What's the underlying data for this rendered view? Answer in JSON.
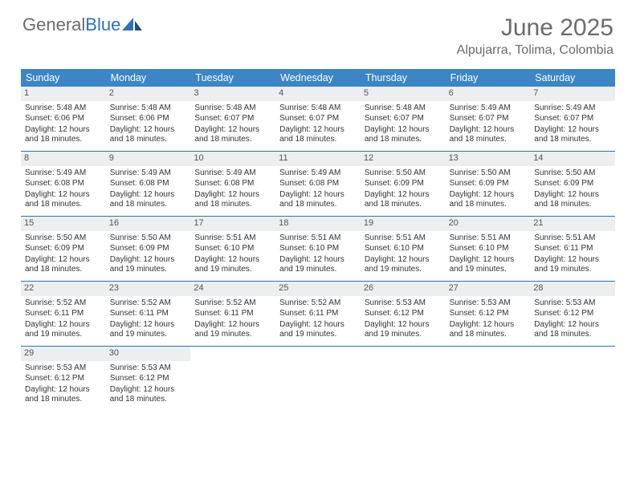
{
  "logo": {
    "text1": "General",
    "text2": "Blue"
  },
  "title": "June 2025",
  "location": "Alpujarra, Tolima, Colombia",
  "colors": {
    "header_bg": "#3b86c7",
    "header_text": "#ffffff",
    "rule": "#2f71b8",
    "daynum_bg": "#eceef0",
    "body_text": "#333333",
    "title_text": "#6b6b6b"
  },
  "day_names": [
    "Sunday",
    "Monday",
    "Tuesday",
    "Wednesday",
    "Thursday",
    "Friday",
    "Saturday"
  ],
  "first_weekday_index": 0,
  "days": [
    {
      "n": 1,
      "sunrise": "5:48 AM",
      "sunset": "6:06 PM",
      "daylight": "12 hours and 18 minutes."
    },
    {
      "n": 2,
      "sunrise": "5:48 AM",
      "sunset": "6:06 PM",
      "daylight": "12 hours and 18 minutes."
    },
    {
      "n": 3,
      "sunrise": "5:48 AM",
      "sunset": "6:07 PM",
      "daylight": "12 hours and 18 minutes."
    },
    {
      "n": 4,
      "sunrise": "5:48 AM",
      "sunset": "6:07 PM",
      "daylight": "12 hours and 18 minutes."
    },
    {
      "n": 5,
      "sunrise": "5:48 AM",
      "sunset": "6:07 PM",
      "daylight": "12 hours and 18 minutes."
    },
    {
      "n": 6,
      "sunrise": "5:49 AM",
      "sunset": "6:07 PM",
      "daylight": "12 hours and 18 minutes."
    },
    {
      "n": 7,
      "sunrise": "5:49 AM",
      "sunset": "6:07 PM",
      "daylight": "12 hours and 18 minutes."
    },
    {
      "n": 8,
      "sunrise": "5:49 AM",
      "sunset": "6:08 PM",
      "daylight": "12 hours and 18 minutes."
    },
    {
      "n": 9,
      "sunrise": "5:49 AM",
      "sunset": "6:08 PM",
      "daylight": "12 hours and 18 minutes."
    },
    {
      "n": 10,
      "sunrise": "5:49 AM",
      "sunset": "6:08 PM",
      "daylight": "12 hours and 18 minutes."
    },
    {
      "n": 11,
      "sunrise": "5:49 AM",
      "sunset": "6:08 PM",
      "daylight": "12 hours and 18 minutes."
    },
    {
      "n": 12,
      "sunrise": "5:50 AM",
      "sunset": "6:09 PM",
      "daylight": "12 hours and 18 minutes."
    },
    {
      "n": 13,
      "sunrise": "5:50 AM",
      "sunset": "6:09 PM",
      "daylight": "12 hours and 18 minutes."
    },
    {
      "n": 14,
      "sunrise": "5:50 AM",
      "sunset": "6:09 PM",
      "daylight": "12 hours and 18 minutes."
    },
    {
      "n": 15,
      "sunrise": "5:50 AM",
      "sunset": "6:09 PM",
      "daylight": "12 hours and 18 minutes."
    },
    {
      "n": 16,
      "sunrise": "5:50 AM",
      "sunset": "6:09 PM",
      "daylight": "12 hours and 19 minutes."
    },
    {
      "n": 17,
      "sunrise": "5:51 AM",
      "sunset": "6:10 PM",
      "daylight": "12 hours and 19 minutes."
    },
    {
      "n": 18,
      "sunrise": "5:51 AM",
      "sunset": "6:10 PM",
      "daylight": "12 hours and 19 minutes."
    },
    {
      "n": 19,
      "sunrise": "5:51 AM",
      "sunset": "6:10 PM",
      "daylight": "12 hours and 19 minutes."
    },
    {
      "n": 20,
      "sunrise": "5:51 AM",
      "sunset": "6:10 PM",
      "daylight": "12 hours and 19 minutes."
    },
    {
      "n": 21,
      "sunrise": "5:51 AM",
      "sunset": "6:11 PM",
      "daylight": "12 hours and 19 minutes."
    },
    {
      "n": 22,
      "sunrise": "5:52 AM",
      "sunset": "6:11 PM",
      "daylight": "12 hours and 19 minutes."
    },
    {
      "n": 23,
      "sunrise": "5:52 AM",
      "sunset": "6:11 PM",
      "daylight": "12 hours and 19 minutes."
    },
    {
      "n": 24,
      "sunrise": "5:52 AM",
      "sunset": "6:11 PM",
      "daylight": "12 hours and 19 minutes."
    },
    {
      "n": 25,
      "sunrise": "5:52 AM",
      "sunset": "6:11 PM",
      "daylight": "12 hours and 19 minutes."
    },
    {
      "n": 26,
      "sunrise": "5:53 AM",
      "sunset": "6:12 PM",
      "daylight": "12 hours and 19 minutes."
    },
    {
      "n": 27,
      "sunrise": "5:53 AM",
      "sunset": "6:12 PM",
      "daylight": "12 hours and 18 minutes."
    },
    {
      "n": 28,
      "sunrise": "5:53 AM",
      "sunset": "6:12 PM",
      "daylight": "12 hours and 18 minutes."
    },
    {
      "n": 29,
      "sunrise": "5:53 AM",
      "sunset": "6:12 PM",
      "daylight": "12 hours and 18 minutes."
    },
    {
      "n": 30,
      "sunrise": "5:53 AM",
      "sunset": "6:12 PM",
      "daylight": "12 hours and 18 minutes."
    }
  ],
  "labels": {
    "sunrise": "Sunrise:",
    "sunset": "Sunset:",
    "daylight": "Daylight:"
  }
}
